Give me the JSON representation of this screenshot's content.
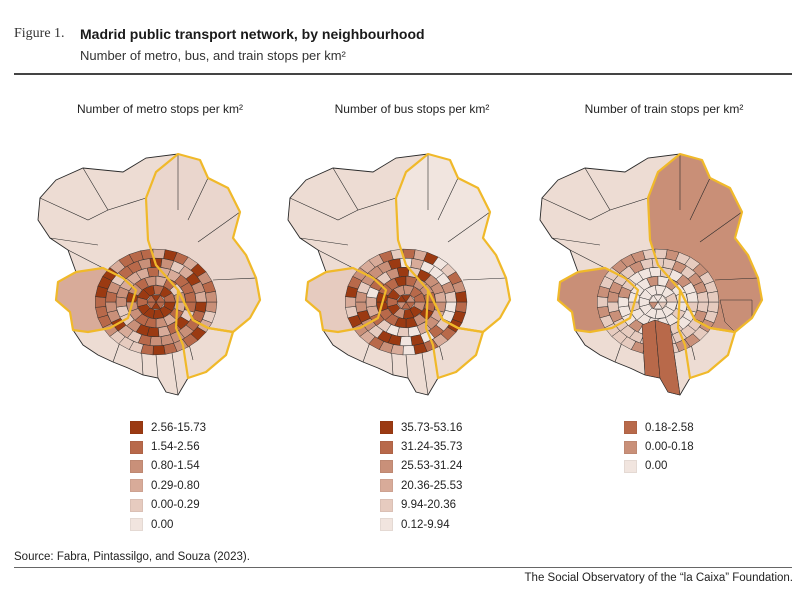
{
  "header": {
    "figure_label": "Figure 1.",
    "title": "Madrid public transport network, by neighbourhood",
    "subtitle": "Number of metro, bus, and train stops per km²"
  },
  "panels": [
    {
      "title": "Number of metro stops per km²",
      "legend": [
        {
          "label": "2.56-15.73",
          "color": "#9b3a12"
        },
        {
          "label": "1.54-2.56",
          "color": "#b8694a"
        },
        {
          "label": "0.80-1.54",
          "color": "#c99079"
        },
        {
          "label": "0.29-0.80",
          "color": "#d8ab99"
        },
        {
          "label": "0.00-0.29",
          "color": "#e6cbbf"
        },
        {
          "label": "0.00",
          "color": "#f1e5df"
        }
      ]
    },
    {
      "title": "Number of bus stops per km²",
      "legend": [
        {
          "label": "35.73-53.16",
          "color": "#9b3a12"
        },
        {
          "label": "31.24-35.73",
          "color": "#b8694a"
        },
        {
          "label": "25.53-31.24",
          "color": "#c99079"
        },
        {
          "label": "20.36-25.53",
          "color": "#d8ab99"
        },
        {
          "label": "9.94-20.36",
          "color": "#e6cbbf"
        },
        {
          "label": "0.12-9.94",
          "color": "#f1e5df"
        }
      ]
    },
    {
      "title": "Number of train stops per km²",
      "legend": [
        {
          "label": "0.18-2.58",
          "color": "#b8694a"
        },
        {
          "label": "0.00-0.18",
          "color": "#c99079"
        },
        {
          "label": "0.00",
          "color": "#f1e5df"
        }
      ]
    }
  ],
  "footer": {
    "source": "Source: Fabra, Pintassilgo, and Souza (2023).",
    "credit": "The Social Observatory of the “la Caixa” Foundation."
  }
}
